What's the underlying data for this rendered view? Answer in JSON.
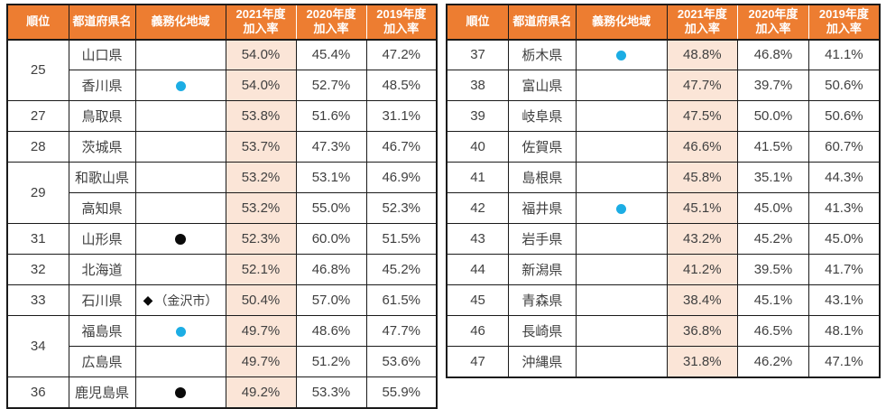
{
  "colors": {
    "header_bg": "#ED7D31",
    "header_text": "#FFFFFF",
    "highlight_2021_column": "#FBE5D7",
    "border": "#1A1A1A",
    "text": "#404040",
    "blue_marker": "#1CADE4",
    "black_marker": "#0A0A0A"
  },
  "marker_glyphs": {
    "diamond": "◆"
  },
  "columns": [
    {
      "key": "rank",
      "label": "順位"
    },
    {
      "key": "pref",
      "label": "都道府県名"
    },
    {
      "key": "area",
      "label": "義務化地域"
    },
    {
      "key": "r2021",
      "label": "2021年度\n加入率"
    },
    {
      "key": "r2020",
      "label": "2020年度\n加入率"
    },
    {
      "key": "r2019",
      "label": "2019年度\n加入率"
    }
  ],
  "tables": {
    "left": {
      "rows": [
        {
          "rank": "25",
          "rank_span": 2,
          "pref": "山口県",
          "marker": "none",
          "marker_text": "",
          "r2021": "54.0%",
          "r2020": "45.4%",
          "r2019": "47.2%"
        },
        {
          "rank": null,
          "pref": "香川県",
          "marker": "blue-circle",
          "marker_text": "",
          "r2021": "54.0%",
          "r2020": "52.7%",
          "r2019": "48.5%"
        },
        {
          "rank": "27",
          "rank_span": 1,
          "pref": "鳥取県",
          "marker": "none",
          "marker_text": "",
          "r2021": "53.8%",
          "r2020": "51.6%",
          "r2019": "31.1%"
        },
        {
          "rank": "28",
          "rank_span": 1,
          "pref": "茨城県",
          "marker": "none",
          "marker_text": "",
          "r2021": "53.7%",
          "r2020": "47.3%",
          "r2019": "46.7%"
        },
        {
          "rank": "29",
          "rank_span": 2,
          "pref": "和歌山県",
          "marker": "none",
          "marker_text": "",
          "r2021": "53.2%",
          "r2020": "53.1%",
          "r2019": "46.9%"
        },
        {
          "rank": null,
          "pref": "高知県",
          "marker": "none",
          "marker_text": "",
          "r2021": "53.2%",
          "r2020": "55.0%",
          "r2019": "52.3%"
        },
        {
          "rank": "31",
          "rank_span": 1,
          "pref": "山形県",
          "marker": "black-circle",
          "marker_text": "",
          "r2021": "52.3%",
          "r2020": "60.0%",
          "r2019": "51.5%"
        },
        {
          "rank": "32",
          "rank_span": 1,
          "pref": "北海道",
          "marker": "none",
          "marker_text": "",
          "r2021": "52.1%",
          "r2020": "46.8%",
          "r2019": "45.2%"
        },
        {
          "rank": "33",
          "rank_span": 1,
          "pref": "石川県",
          "marker": "diamond",
          "marker_text": "（金沢市）",
          "r2021": "50.4%",
          "r2020": "57.0%",
          "r2019": "61.5%"
        },
        {
          "rank": "34",
          "rank_span": 2,
          "pref": "福島県",
          "marker": "blue-circle",
          "marker_text": "",
          "r2021": "49.7%",
          "r2020": "48.6%",
          "r2019": "47.7%"
        },
        {
          "rank": null,
          "pref": "広島県",
          "marker": "none",
          "marker_text": "",
          "r2021": "49.7%",
          "r2020": "51.2%",
          "r2019": "53.6%"
        },
        {
          "rank": "36",
          "rank_span": 1,
          "pref": "鹿児島県",
          "marker": "black-circle",
          "marker_text": "",
          "r2021": "49.2%",
          "r2020": "53.3%",
          "r2019": "55.9%"
        }
      ]
    },
    "right": {
      "rows": [
        {
          "rank": "37",
          "rank_span": 1,
          "pref": "栃木県",
          "marker": "blue-circle",
          "marker_text": "",
          "r2021": "48.8%",
          "r2020": "46.8%",
          "r2019": "41.1%"
        },
        {
          "rank": "38",
          "rank_span": 1,
          "pref": "富山県",
          "marker": "none",
          "marker_text": "",
          "r2021": "47.7%",
          "r2020": "39.7%",
          "r2019": "50.6%"
        },
        {
          "rank": "39",
          "rank_span": 1,
          "pref": "岐阜県",
          "marker": "none",
          "marker_text": "",
          "r2021": "47.5%",
          "r2020": "50.0%",
          "r2019": "50.6%"
        },
        {
          "rank": "40",
          "rank_span": 1,
          "pref": "佐賀県",
          "marker": "none",
          "marker_text": "",
          "r2021": "46.6%",
          "r2020": "41.5%",
          "r2019": "60.7%"
        },
        {
          "rank": "41",
          "rank_span": 1,
          "pref": "島根県",
          "marker": "none",
          "marker_text": "",
          "r2021": "45.8%",
          "r2020": "35.1%",
          "r2019": "44.3%"
        },
        {
          "rank": "42",
          "rank_span": 1,
          "pref": "福井県",
          "marker": "blue-circle",
          "marker_text": "",
          "r2021": "45.1%",
          "r2020": "45.0%",
          "r2019": "41.3%"
        },
        {
          "rank": "43",
          "rank_span": 1,
          "pref": "岩手県",
          "marker": "none",
          "marker_text": "",
          "r2021": "43.2%",
          "r2020": "45.2%",
          "r2019": "45.0%"
        },
        {
          "rank": "44",
          "rank_span": 1,
          "pref": "新潟県",
          "marker": "none",
          "marker_text": "",
          "r2021": "41.2%",
          "r2020": "39.5%",
          "r2019": "41.7%"
        },
        {
          "rank": "45",
          "rank_span": 1,
          "pref": "青森県",
          "marker": "none",
          "marker_text": "",
          "r2021": "38.4%",
          "r2020": "45.1%",
          "r2019": "43.1%"
        },
        {
          "rank": "46",
          "rank_span": 1,
          "pref": "長崎県",
          "marker": "none",
          "marker_text": "",
          "r2021": "36.8%",
          "r2020": "46.5%",
          "r2019": "48.1%"
        },
        {
          "rank": "47",
          "rank_span": 1,
          "pref": "沖縄県",
          "marker": "none",
          "marker_text": "",
          "r2021": "31.8%",
          "r2020": "46.2%",
          "r2019": "47.1%"
        }
      ]
    }
  }
}
